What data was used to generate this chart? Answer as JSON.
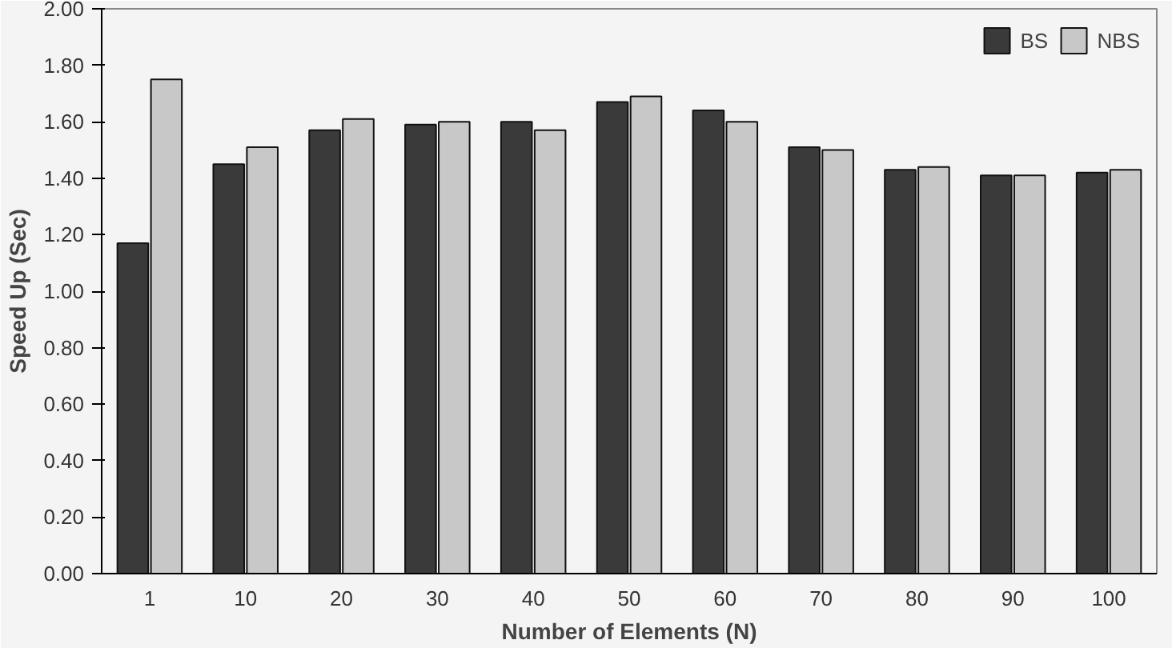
{
  "chart_data": {
    "type": "bar",
    "xlabel": "Number of Elements (N)",
    "ylabel": "Speed Up (Sec)",
    "categories": [
      "1",
      "10",
      "20",
      "30",
      "40",
      "50",
      "60",
      "70",
      "80",
      "90",
      "100"
    ],
    "series": [
      {
        "name": "BS",
        "color": "#3a3a3a",
        "values": [
          1.17,
          1.45,
          1.57,
          1.59,
          1.6,
          1.67,
          1.64,
          1.51,
          1.43,
          1.41,
          1.42
        ]
      },
      {
        "name": "NBS",
        "color": "#c8c8c8",
        "values": [
          1.75,
          1.51,
          1.61,
          1.6,
          1.57,
          1.69,
          1.6,
          1.5,
          1.44,
          1.41,
          1.43
        ]
      }
    ],
    "ylim": [
      0,
      2
    ],
    "yticks": [
      {
        "value": 0,
        "label": "0.00"
      },
      {
        "value": 0.2,
        "label": "0.20"
      },
      {
        "value": 0.4,
        "label": "0.40"
      },
      {
        "value": 0.6,
        "label": "0.60"
      },
      {
        "value": 0.8,
        "label": "0.80"
      },
      {
        "value": 1.0,
        "label": "1.00"
      },
      {
        "value": 1.2,
        "label": "1.20"
      },
      {
        "value": 1.4,
        "label": "1.40"
      },
      {
        "value": 1.6,
        "label": "1.60"
      },
      {
        "value": 1.8,
        "label": "1.80"
      },
      {
        "value": 2.0,
        "label": "2.00"
      }
    ],
    "grid": false,
    "legend": "top right"
  }
}
